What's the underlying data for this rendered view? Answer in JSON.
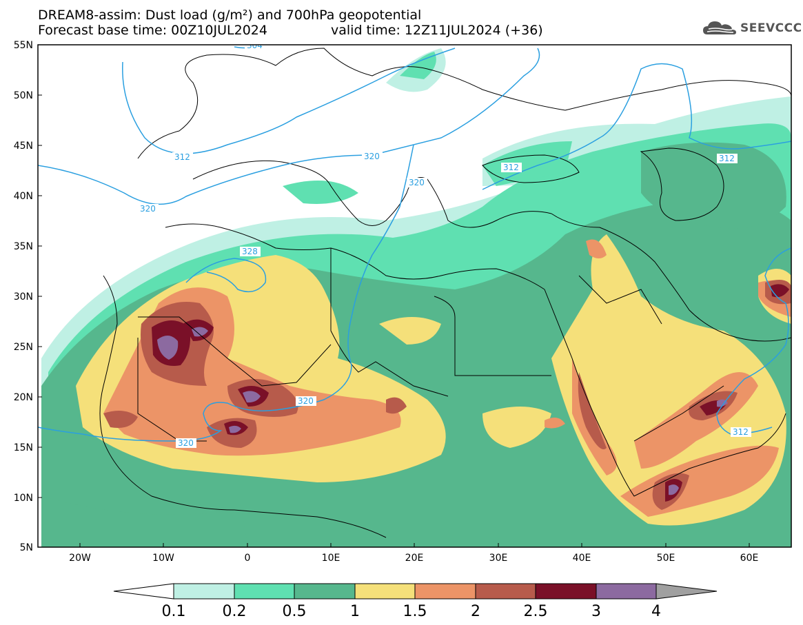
{
  "header": {
    "title_line1": "DREAM8-assim: Dust load (g/m²) and 700hPa geopotential",
    "title_line2_left": "Forecast base time: 00Z10JUL2024",
    "title_line2_right": "valid time: 12Z11JUL2024 (+36)"
  },
  "logo": {
    "text": "SEEVCCC",
    "icon": "cloud-icon"
  },
  "map": {
    "lat_labels": [
      "55N",
      "50N",
      "45N",
      "40N",
      "35N",
      "30N",
      "25N",
      "20N",
      "15N",
      "10N",
      "5N"
    ],
    "lon_labels": [
      "20W",
      "10W",
      "0",
      "10E",
      "20E",
      "30E",
      "40E",
      "50E",
      "60E"
    ],
    "geopotential_labels": [
      "304",
      "312",
      "320",
      "312",
      "320",
      "320",
      "328",
      "320",
      "320",
      "312",
      "312"
    ]
  },
  "colorbar": {
    "labels": [
      "0.1",
      "0.2",
      "0.5",
      "1",
      "1.5",
      "2",
      "2.5",
      "3",
      "4"
    ],
    "colors": {
      "c01": "#bff0e4",
      "c02": "#5fe0b1",
      "c05": "#56b78d",
      "c1": "#f5e07a",
      "c15": "#ec9467",
      "c2": "#b75b4b",
      "c25": "#7a1028",
      "c3": "#8c6aa0",
      "c4": "#a0a0a0"
    }
  },
  "colors": {
    "contour": "#2a9fe0",
    "coast": "#000000"
  }
}
